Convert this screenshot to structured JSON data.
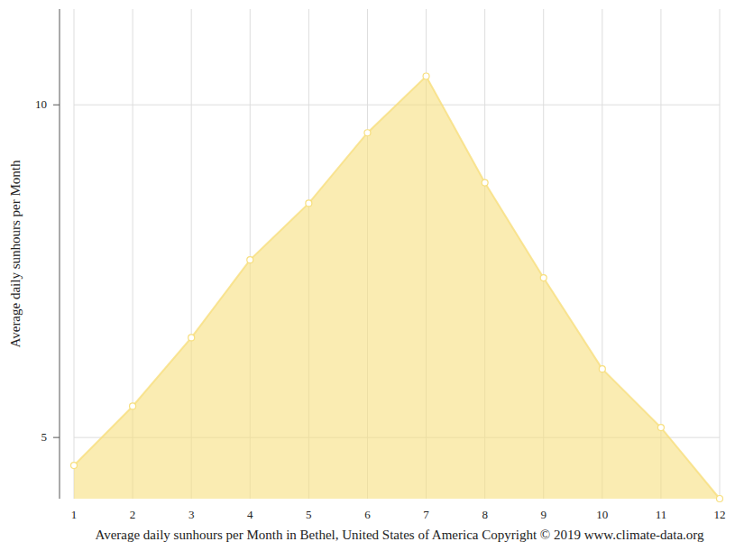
{
  "chart_data": {
    "type": "area",
    "title": "Average daily sunhours per Month in Bethel, United States of America Copyright © 2019 www.climate-data.org",
    "y_label": "Average daily sunhours per Month",
    "x": [
      1,
      2,
      3,
      4,
      5,
      6,
      7,
      8,
      9,
      10,
      11,
      12
    ],
    "values": [
      4.58,
      5.47,
      6.5,
      7.67,
      8.52,
      9.58,
      10.43,
      8.83,
      7.4,
      6.03,
      5.15,
      4.08
    ],
    "color": "#f7df7e",
    "marker": "circle",
    "xlim": [
      1,
      12
    ],
    "xticks": [
      1,
      2,
      3,
      4,
      5,
      6,
      7,
      8,
      9,
      10,
      11,
      12
    ],
    "ylim": [
      4.08,
      11.44
    ],
    "yticks": [
      5,
      10
    ],
    "grid": true
  }
}
